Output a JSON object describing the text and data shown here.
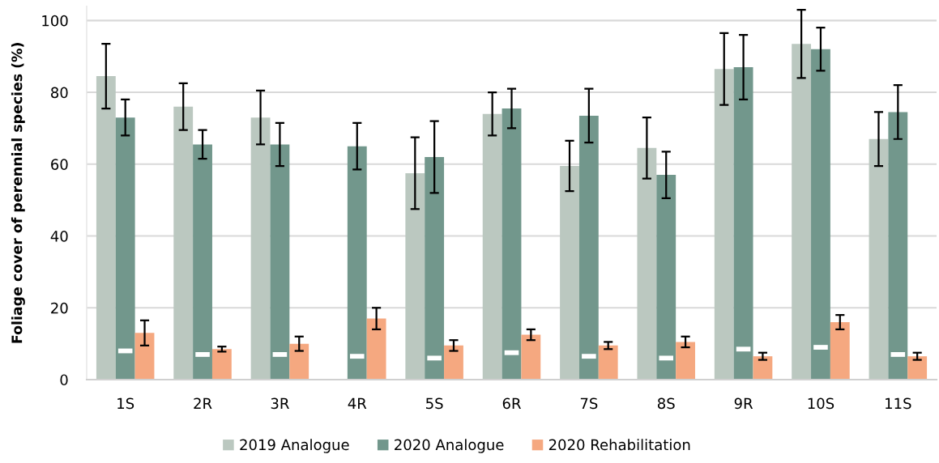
{
  "chart_data": {
    "type": "bar",
    "ylabel": "Foliage cover of perennial species (%)",
    "categories": [
      "1S",
      "2R",
      "3R",
      "4R",
      "5S",
      "6R",
      "7S",
      "8S",
      "9R",
      "10S",
      "11S"
    ],
    "ylim": [
      0,
      104
    ],
    "yticks": [
      0,
      20,
      40,
      60,
      80,
      100
    ],
    "grid": "y",
    "legend": "bottom",
    "series": [
      {
        "name": "2019 Analogue",
        "color": "#bbc8c0",
        "values": [
          84.5,
          76,
          73,
          null,
          57.5,
          74,
          59.5,
          64.5,
          86.5,
          93.5,
          67
        ],
        "errors": [
          9,
          6.5,
          7.5,
          null,
          10,
          6,
          7,
          8.5,
          10,
          9.5,
          7.5
        ]
      },
      {
        "name": "2020 Analogue",
        "color": "#72978c",
        "values": [
          73,
          65.5,
          65.5,
          65,
          62,
          75.5,
          73.5,
          57,
          87,
          92,
          74.5
        ],
        "errors": [
          5,
          4,
          6,
          6.5,
          10,
          5.5,
          7.5,
          6.5,
          9,
          6,
          7.5
        ]
      },
      {
        "name": "2020 Rehabilitation",
        "color": "#f5a880",
        "values": [
          13,
          8.5,
          10,
          17,
          9.5,
          12.5,
          9.5,
          10.5,
          6.5,
          16,
          6.5
        ],
        "errors": [
          3.5,
          0.7,
          2,
          3,
          1.5,
          1.5,
          1,
          1.5,
          1,
          2,
          1
        ]
      },
      {
        "type": "scatter",
        "color": "#ffffff",
        "x": [
          "1S",
          "2R",
          "3R",
          "4R",
          "5S",
          "6R",
          "7S",
          "8S",
          "9R",
          "10S",
          "11S"
        ],
        "values": [
          8,
          7,
          7,
          6.5,
          6,
          7.5,
          6.5,
          6,
          8.5,
          9,
          7
        ]
      }
    ]
  }
}
